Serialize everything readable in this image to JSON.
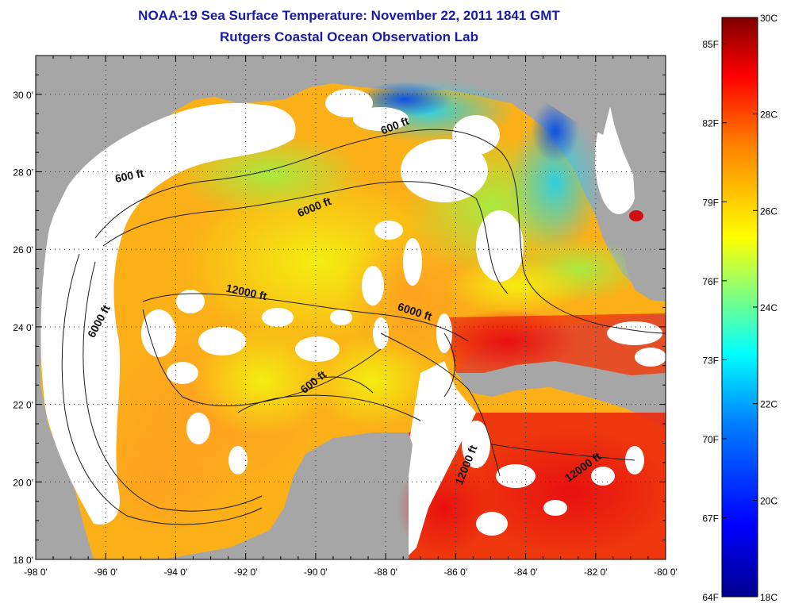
{
  "title": "NOAA-19 Sea Surface Temperature:  November 22, 2011 1841 GMT",
  "subtitle": "Rutgers Coastal Ocean Observation Lab",
  "map": {
    "lon_ticks": [
      "-98 0'",
      "-96 0'",
      "-94 0'",
      "-92 0'",
      "-90 0'",
      "-88 0'",
      "-86 0'",
      "-84 0'",
      "-82 0'",
      "-80 0'"
    ],
    "lat_ticks": [
      "30 0'",
      "28 0'",
      "26 0'",
      "24 0'",
      "22 0'",
      "20 0'",
      "18 0'"
    ],
    "lon_range": [
      -98,
      -80
    ],
    "lat_range": [
      18,
      31
    ],
    "colors": {
      "land": "#a6a6a6",
      "cloud": "#ffffff",
      "contour": "#1a1a1a"
    },
    "contour_labels": [
      {
        "text": "600 ft",
        "lon": -87.7,
        "lat": 29.1,
        "angle": -22
      },
      {
        "text": "600 ft",
        "lon": -95.3,
        "lat": 27.8,
        "angle": -12
      },
      {
        "text": "6000 ft",
        "lon": -90.0,
        "lat": 27.0,
        "angle": -22
      },
      {
        "text": "6000 ft",
        "lon": -96.1,
        "lat": 24.1,
        "angle": -62
      },
      {
        "text": "12000 ft",
        "lon": -92.0,
        "lat": 24.8,
        "angle": 12
      },
      {
        "text": "6000 ft",
        "lon": -87.2,
        "lat": 24.3,
        "angle": 18
      },
      {
        "text": "600 ft",
        "lon": -90.0,
        "lat": 22.5,
        "angle": -38
      },
      {
        "text": "12000 ft",
        "lon": -85.6,
        "lat": 20.4,
        "angle": -68
      },
      {
        "text": "12000 ft",
        "lon": -82.3,
        "lat": 20.3,
        "angle": -36
      }
    ]
  },
  "colorbar": {
    "f_labels": [
      "85F",
      "82F",
      "79F",
      "76F",
      "73F",
      "70F",
      "67F",
      "64F"
    ],
    "c_labels": [
      "30C",
      "28C",
      "26C",
      "24C",
      "22C",
      "20C",
      "18C"
    ],
    "f_range": [
      64,
      86
    ],
    "c_range": [
      18,
      30
    ],
    "stops": [
      "#00008f",
      "#0000ff",
      "#0080ff",
      "#00ffff",
      "#80ff80",
      "#ffff00",
      "#ff8000",
      "#ff0000",
      "#800000"
    ]
  }
}
